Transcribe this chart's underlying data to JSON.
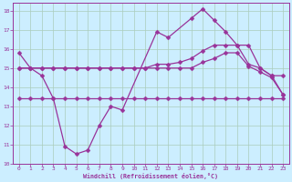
{
  "xlabel": "Windchill (Refroidissement éolien,°C)",
  "xlim": [
    -0.5,
    23.5
  ],
  "ylim": [
    10,
    18.4
  ],
  "yticks": [
    10,
    11,
    12,
    13,
    14,
    15,
    16,
    17,
    18
  ],
  "xticks": [
    0,
    1,
    2,
    3,
    4,
    5,
    6,
    7,
    8,
    9,
    10,
    11,
    12,
    13,
    14,
    15,
    16,
    17,
    18,
    19,
    20,
    21,
    22,
    23
  ],
  "bg_color": "#cceeff",
  "grid_color": "#aaccbb",
  "line_color": "#993399",
  "series1_x": [
    0,
    1,
    2,
    3,
    4,
    5,
    6,
    7,
    8,
    9,
    12,
    13,
    15,
    16,
    17,
    18,
    19,
    20,
    21,
    22,
    23
  ],
  "series1_y": [
    15.8,
    15.0,
    14.6,
    13.4,
    10.9,
    10.5,
    10.7,
    12.0,
    13.0,
    12.8,
    16.9,
    16.6,
    17.6,
    18.1,
    17.5,
    16.9,
    16.2,
    16.2,
    15.0,
    14.6,
    13.6
  ],
  "series2_x": [
    0,
    1,
    2,
    3,
    4,
    5,
    6,
    7,
    8,
    9,
    10,
    11,
    12,
    13,
    14,
    15,
    16,
    17,
    18,
    19,
    20,
    21,
    22,
    23
  ],
  "series2_y": [
    13.4,
    13.4,
    13.4,
    13.4,
    13.4,
    13.4,
    13.4,
    13.4,
    13.4,
    13.4,
    13.4,
    13.4,
    13.4,
    13.4,
    13.4,
    13.4,
    13.4,
    13.4,
    13.4,
    13.4,
    13.4,
    13.4,
    13.4,
    13.4
  ],
  "series3_x": [
    0,
    1,
    2,
    3,
    4,
    5,
    6,
    7,
    8,
    9,
    10,
    11,
    12,
    13,
    14,
    15,
    16,
    17,
    18,
    19,
    20,
    21,
    22,
    23
  ],
  "series3_y": [
    15.0,
    15.0,
    15.0,
    15.0,
    15.0,
    15.0,
    15.0,
    15.0,
    15.0,
    15.0,
    15.0,
    15.0,
    15.2,
    15.2,
    15.3,
    15.5,
    15.9,
    16.2,
    16.2,
    16.2,
    15.2,
    15.0,
    14.6,
    14.6
  ],
  "series4_x": [
    0,
    1,
    2,
    3,
    4,
    5,
    6,
    7,
    8,
    9,
    10,
    11,
    12,
    13,
    14,
    15,
    16,
    17,
    18,
    19,
    20,
    21,
    22,
    23
  ],
  "series4_y": [
    15.0,
    15.0,
    15.0,
    15.0,
    15.0,
    15.0,
    15.0,
    15.0,
    15.0,
    15.0,
    15.0,
    15.0,
    15.0,
    15.0,
    15.0,
    15.0,
    15.3,
    15.5,
    15.8,
    15.8,
    15.1,
    14.8,
    14.5,
    13.6
  ],
  "figsize": [
    3.2,
    2.0
  ],
  "dpi": 100
}
